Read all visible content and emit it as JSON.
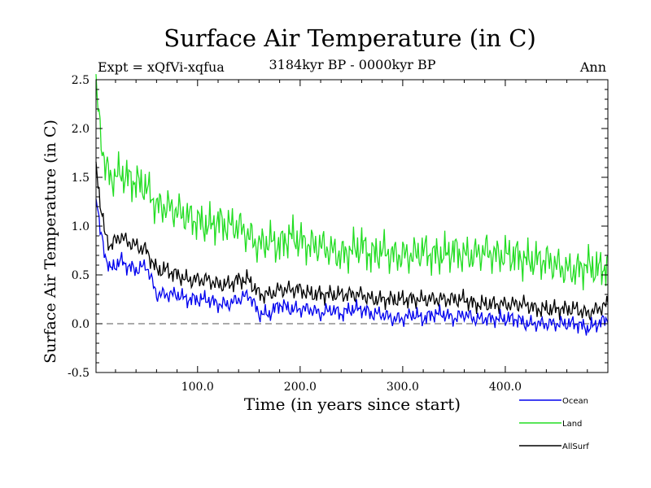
{
  "chart_data": {
    "type": "line",
    "title": "Surface Air Temperature (in C)",
    "subtitle": "3184kyr BP - 0000kyr BP",
    "experiment_label": "Expt = xQfVi-xqfua",
    "season_label": "Ann",
    "xlabel": "Time (in years since start)",
    "ylabel": "Surface Air Temperature (in C)",
    "xlim": [
      1,
      500
    ],
    "ylim": [
      -0.5,
      2.5
    ],
    "x_ticks": [
      100,
      200,
      300,
      400
    ],
    "x_tick_labels": [
      "100.0",
      "200.0",
      "300.0",
      "400.0"
    ],
    "y_ticks": [
      -0.5,
      0.0,
      0.5,
      1.0,
      1.5,
      2.0,
      2.5
    ],
    "y_tick_labels": [
      "-0.5",
      "0.0",
      "0.5",
      "1.0",
      "1.5",
      "2.0",
      "2.5"
    ],
    "zero_line": {
      "value": 0.0,
      "style": "dashed"
    },
    "legend_position": "bottom-right, below plot",
    "series": [
      {
        "name": "Ocean",
        "color": "#0000ee",
        "x": [
          1,
          5,
          10,
          15,
          20,
          25,
          30,
          40,
          50,
          60,
          70,
          80,
          90,
          100,
          110,
          120,
          130,
          140,
          150,
          160,
          170,
          180,
          190,
          200,
          210,
          220,
          230,
          240,
          250,
          260,
          270,
          280,
          290,
          300,
          310,
          320,
          330,
          340,
          350,
          360,
          370,
          380,
          390,
          400,
          410,
          420,
          430,
          440,
          450,
          460,
          470,
          480,
          490,
          500
        ],
        "values": [
          1.35,
          0.95,
          0.7,
          0.55,
          0.6,
          0.65,
          0.6,
          0.55,
          0.6,
          0.3,
          0.3,
          0.3,
          0.25,
          0.25,
          0.25,
          0.2,
          0.2,
          0.25,
          0.3,
          0.1,
          0.1,
          0.2,
          0.15,
          0.15,
          0.15,
          0.1,
          0.15,
          0.1,
          0.15,
          0.15,
          0.1,
          0.1,
          0.05,
          0.05,
          0.1,
          0.05,
          0.1,
          0.1,
          0.05,
          0.1,
          0.05,
          0.05,
          0.05,
          0.05,
          0.05,
          0.0,
          0.0,
          0.0,
          0.0,
          0.0,
          0.0,
          -0.05,
          0.0,
          0.05
        ]
      },
      {
        "name": "Land",
        "color": "#22dd22",
        "x": [
          1,
          5,
          10,
          15,
          20,
          25,
          30,
          40,
          50,
          60,
          70,
          80,
          90,
          100,
          110,
          120,
          130,
          140,
          150,
          160,
          170,
          180,
          190,
          200,
          210,
          220,
          230,
          240,
          250,
          260,
          270,
          280,
          290,
          300,
          310,
          320,
          330,
          340,
          350,
          360,
          370,
          380,
          390,
          400,
          410,
          420,
          430,
          440,
          450,
          460,
          470,
          480,
          490,
          500
        ],
        "values": [
          2.4,
          2.0,
          1.6,
          1.5,
          1.5,
          1.55,
          1.5,
          1.45,
          1.4,
          1.2,
          1.2,
          1.15,
          1.1,
          1.05,
          1.0,
          1.05,
          1.0,
          1.0,
          0.9,
          0.8,
          0.85,
          0.8,
          0.9,
          0.85,
          0.8,
          0.8,
          0.75,
          0.7,
          0.75,
          0.8,
          0.7,
          0.75,
          0.7,
          0.7,
          0.7,
          0.75,
          0.7,
          0.7,
          0.75,
          0.7,
          0.7,
          0.75,
          0.7,
          0.7,
          0.7,
          0.65,
          0.65,
          0.65,
          0.6,
          0.55,
          0.55,
          0.6,
          0.55,
          0.6
        ]
      },
      {
        "name": "AllSurf",
        "color": "#000000",
        "x": [
          1,
          5,
          10,
          15,
          20,
          25,
          30,
          40,
          50,
          60,
          70,
          80,
          90,
          100,
          110,
          120,
          130,
          140,
          150,
          160,
          170,
          180,
          190,
          200,
          210,
          220,
          230,
          240,
          250,
          260,
          270,
          280,
          290,
          300,
          310,
          320,
          330,
          340,
          350,
          360,
          370,
          380,
          390,
          400,
          410,
          420,
          430,
          440,
          450,
          460,
          470,
          480,
          490,
          500
        ],
        "values": [
          1.65,
          1.25,
          0.9,
          0.8,
          0.85,
          0.9,
          0.85,
          0.8,
          0.75,
          0.55,
          0.55,
          0.5,
          0.45,
          0.45,
          0.45,
          0.4,
          0.4,
          0.45,
          0.45,
          0.3,
          0.3,
          0.35,
          0.35,
          0.35,
          0.3,
          0.3,
          0.3,
          0.3,
          0.3,
          0.3,
          0.25,
          0.25,
          0.25,
          0.25,
          0.25,
          0.25,
          0.25,
          0.25,
          0.25,
          0.25,
          0.2,
          0.2,
          0.2,
          0.2,
          0.2,
          0.2,
          0.15,
          0.15,
          0.15,
          0.15,
          0.15,
          0.1,
          0.15,
          0.2
        ]
      }
    ]
  }
}
